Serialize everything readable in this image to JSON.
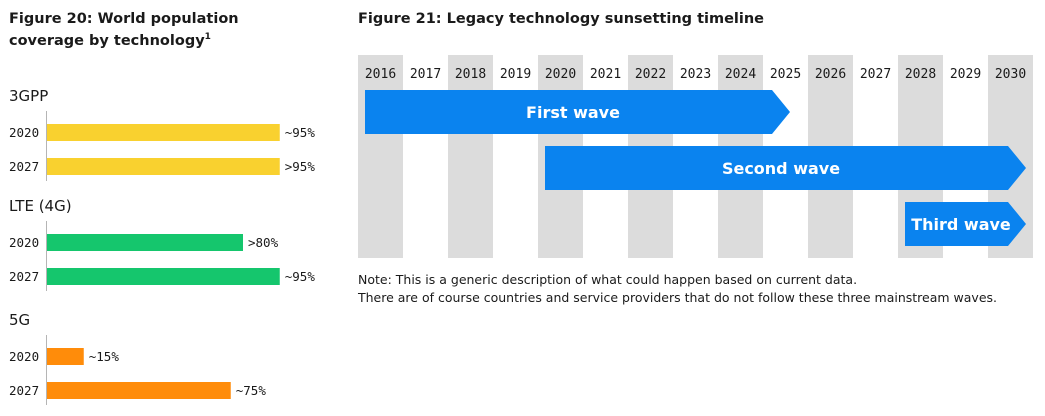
{
  "fig20": {
    "title": "Figure 20: World population coverage by technology",
    "footnote": "1"
  },
  "fig21": {
    "title": "Figure 21: Legacy technology sunsetting timeline",
    "note_line1": "Note: This is a generic description of what could happen based on current data.",
    "note_line2": "There are of course countries and service providers that do not follow these three mainstream waves."
  },
  "chart_data": [
    {
      "type": "bar",
      "orientation": "horizontal",
      "title": "Figure 20: World population coverage by technology",
      "xlim": [
        0,
        100
      ],
      "groups": [
        {
          "name": "3GPP",
          "color": "#f9d12f",
          "bars": [
            {
              "category": "2020",
              "value": 95,
              "label": "~95%"
            },
            {
              "category": "2027",
              "value": 95,
              "label": ">95%"
            }
          ]
        },
        {
          "name": "LTE (4G)",
          "color": "#15c66d",
          "bars": [
            {
              "category": "2020",
              "value": 80,
              "label": ">80%"
            },
            {
              "category": "2027",
              "value": 95,
              "label": "~95%"
            }
          ]
        },
        {
          "name": "5G",
          "color": "#ff8c0a",
          "bars": [
            {
              "category": "2020",
              "value": 15,
              "label": "~15%"
            },
            {
              "category": "2027",
              "value": 75,
              "label": "~75%"
            }
          ]
        }
      ]
    },
    {
      "type": "timeline",
      "title": "Figure 21: Legacy technology sunsetting timeline",
      "years": [
        "2016",
        "2017",
        "2018",
        "2019",
        "2020",
        "2021",
        "2022",
        "2023",
        "2024",
        "2025",
        "2026",
        "2027",
        "2028",
        "2029",
        "2030"
      ],
      "shaded_years": [
        "2016",
        "2018",
        "2020",
        "2022",
        "2024",
        "2026",
        "2028",
        "2030"
      ],
      "arrow_color": "#0a83ef",
      "waves": [
        {
          "label": "First wave",
          "start": "2016",
          "end": "2024"
        },
        {
          "label": "Second wave",
          "start": "2020",
          "end": "2030"
        },
        {
          "label": "Third wave",
          "start": "2028",
          "end": "2030"
        }
      ]
    }
  ]
}
